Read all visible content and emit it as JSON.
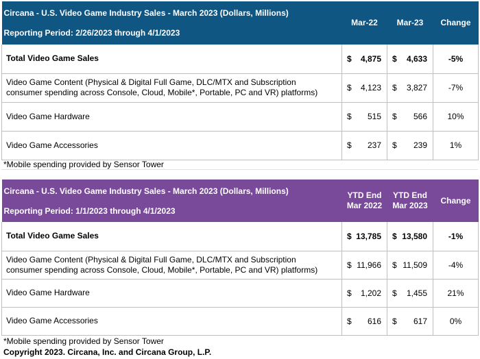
{
  "table1": {
    "title": "Circana - U.S. Video Game Industry Sales - March 2023 (Dollars, Millions)",
    "period": "Reporting Period: 2/26/2023 through 4/1/2023",
    "col1": "Mar-22",
    "col2": "Mar-23",
    "col3": "Change",
    "currency": "$",
    "rows": [
      {
        "label": "Total Video Game Sales",
        "v1": "4,875",
        "v2": "4,633",
        "change": "-5%"
      },
      {
        "label_l1": "Video Game Content (Physical & Digital Full Game, DLC/MTX and Subscription",
        "label_l2": "consumer spending across Console, Cloud, Mobile*, Portable, PC and VR) platforms)",
        "v1": "4,123",
        "v2": "3,827",
        "change": "-7%"
      },
      {
        "label": "Video Game Hardware",
        "v1": "515",
        "v2": "566",
        "change": "10%"
      },
      {
        "label": "Video Game Accessories",
        "v1": "237",
        "v2": "239",
        "change": "1%"
      }
    ],
    "note": "*Mobile spending provided by Sensor Tower"
  },
  "table2": {
    "title": "Circana - U.S. Video Game Industry Sales - March 2023 (Dollars, Millions)",
    "period": "Reporting Period: 1/1/2023 through 4/1/2023",
    "col1_l1": "YTD End",
    "col1_l2": "Mar 2022",
    "col2_l1": "YTD End",
    "col2_l2": "Mar 2023",
    "col3": "Change",
    "currency": "$",
    "rows": [
      {
        "label": "Total Video Game Sales",
        "v1": "13,785",
        "v2": "13,580",
        "change": "-1%"
      },
      {
        "label_l1": "Video Game Content (Physical & Digital Full Game, DLC/MTX and Subscription",
        "label_l2": "consumer spending across Console, Cloud, Mobile*, Portable, PC and VR) platforms)",
        "v1": "11,966",
        "v2": "11,509",
        "change": "-4%"
      },
      {
        "label": "Video Game Hardware",
        "v1": "1,202",
        "v2": "1,455",
        "change": "21%"
      },
      {
        "label": "Video Game Accessories",
        "v1": "616",
        "v2": "617",
        "change": "0%"
      }
    ],
    "note": "*Mobile spending provided by Sensor Tower"
  },
  "copyright": "Copyright 2023. Circana, Inc. and Circana Group, L.P.",
  "colors": {
    "table1_header": "#0f5683",
    "table2_header": "#7a4a9a"
  }
}
